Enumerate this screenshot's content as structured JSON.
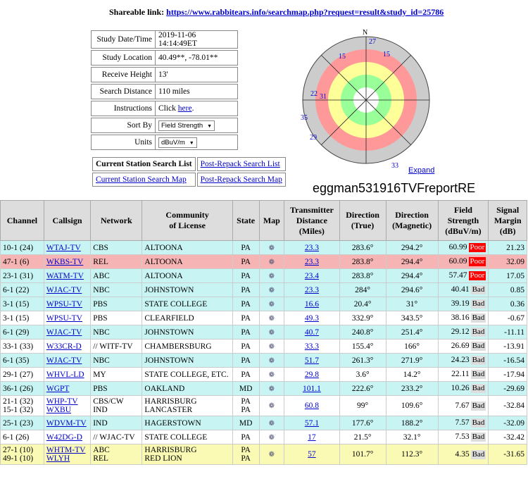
{
  "share": {
    "label": "Shareable link:",
    "url": "https://www.rabbitears.info/searchmap.php?request=result&study_id=25786"
  },
  "info": {
    "date_label": "Study Date/Time",
    "date": "2019-11-06 14:14:49ET",
    "loc_label": "Study Location",
    "loc": "40.49**, -78.01**",
    "height_label": "Receive Height",
    "height": "13'",
    "dist_label": "Search Distance",
    "dist": "110 miles",
    "instr_label": "Instructions",
    "instr_text": "Click ",
    "instr_link": "here",
    "sort_label": "Sort By",
    "sort_value": "Field Strength",
    "units_label": "Units",
    "units_value": "dBuV/m"
  },
  "lists": {
    "current_list": "Current Station Search List",
    "post_list": "Post-Repack Search List",
    "current_map": "Current Station Search Map",
    "post_map": "Post-Repack Search Map"
  },
  "polar": {
    "north": "N",
    "labels": [
      "27",
      "15",
      "15",
      "22",
      "31",
      "35",
      "29",
      "33"
    ],
    "expand": "Expand"
  },
  "handle": "eggman531916TVFreportRE",
  "table": {
    "headers": {
      "channel": "Channel",
      "callsign": "Callsign",
      "network": "Network",
      "community_a": "Community",
      "community_b": "of License",
      "state": "State",
      "map": "Map",
      "tx_a": "Transmitter",
      "tx_b": "Distance",
      "tx_c": "(Miles)",
      "dir_a": "Direction",
      "dir_b": "(True)",
      "mag_a": "Direction",
      "mag_b": "(Magnetic)",
      "fs_a": "Field",
      "fs_b": "Strength",
      "fs_c": "(dBuV/m)",
      "sm_a": "Signal",
      "sm_b": "Margin",
      "sm_c": "(dB)"
    },
    "rows": [
      {
        "ch": "10-1 (24)",
        "call": "WTAJ-TV",
        "net": "CBS",
        "comm": "ALTOONA",
        "st": "PA",
        "dist": "23.3",
        "dir": "283.6°",
        "mag": "294.2°",
        "fs": "60.99",
        "q": "Poor",
        "sm": "21.23",
        "bg": "#c8f4f4"
      },
      {
        "ch": "47-1 (6)",
        "call": "WKBS-TV",
        "net": "REL",
        "comm": "ALTOONA",
        "st": "PA",
        "dist": "23.3",
        "dir": "283.8°",
        "mag": "294.4°",
        "fs": "60.09",
        "q": "Poor",
        "sm": "32.09",
        "bg": "#f6b4b4"
      },
      {
        "ch": "23-1 (31)",
        "call": "WATM-TV",
        "net": "ABC",
        "comm": "ALTOONA",
        "st": "PA",
        "dist": "23.4",
        "dir": "283.8°",
        "mag": "294.4°",
        "fs": "57.47",
        "q": "Poor",
        "sm": "17.05",
        "bg": "#c8f4f4"
      },
      {
        "ch": "6-1 (22)",
        "call": "WJAC-TV",
        "net": "NBC",
        "comm": "JOHNSTOWN",
        "st": "PA",
        "dist": "23.3",
        "dir": "284°",
        "mag": "294.6°",
        "fs": "40.41",
        "q": "Bad",
        "sm": "0.85",
        "bg": "#c8f4f4"
      },
      {
        "ch": "3-1 (15)",
        "call": "WPSU-TV",
        "net": "PBS",
        "comm": "STATE COLLEGE",
        "st": "PA",
        "dist": "16.6",
        "dir": "20.4°",
        "mag": "31°",
        "fs": "39.19",
        "q": "Bad",
        "sm": "0.36",
        "bg": "#c8f4f4"
      },
      {
        "ch": "3-1 (15)",
        "call": "WPSU-TV",
        "net": "PBS",
        "comm": "CLEARFIELD",
        "st": "PA",
        "dist": "49.3",
        "dir": "332.9°",
        "mag": "343.5°",
        "fs": "38.16",
        "q": "Bad",
        "sm": "-0.67",
        "bg": "#ffffff"
      },
      {
        "ch": "6-1 (29)",
        "call": "WJAC-TV",
        "net": "NBC",
        "comm": "JOHNSTOWN",
        "st": "PA",
        "dist": "40.7",
        "dir": "240.8°",
        "mag": "251.4°",
        "fs": "29.12",
        "q": "Bad",
        "sm": "-11.11",
        "bg": "#c8f4f4"
      },
      {
        "ch": "33-1 (33)",
        "call": "W33CR-D",
        "net": "// WITF-TV",
        "comm": "CHAMBERSBURG",
        "st": "PA",
        "dist": "33.3",
        "dir": "155.4°",
        "mag": "166°",
        "fs": "26.69",
        "q": "Bad",
        "sm": "-13.91",
        "bg": "#ffffff"
      },
      {
        "ch": "6-1 (35)",
        "call": "WJAC-TV",
        "net": "NBC",
        "comm": "JOHNSTOWN",
        "st": "PA",
        "dist": "51.7",
        "dir": "261.3°",
        "mag": "271.9°",
        "fs": "24.23",
        "q": "Bad",
        "sm": "-16.54",
        "bg": "#c8f4f4"
      },
      {
        "ch": "29-1 (27)",
        "call": "WHVL-LD",
        "net": "MY",
        "comm": "STATE COLLEGE, ETC.",
        "st": "PA",
        "dist": "29.8",
        "dir": "3.6°",
        "mag": "14.2°",
        "fs": "22.11",
        "q": "Bad",
        "sm": "-17.94",
        "bg": "#ffffff"
      },
      {
        "ch": "36-1 (26)",
        "call": "WGPT",
        "net": "PBS",
        "comm": "OAKLAND",
        "st": "MD",
        "dist": "101.1",
        "dir": "222.6°",
        "mag": "233.2°",
        "fs": "10.26",
        "q": "Bad",
        "sm": "-29.69",
        "bg": "#c8f4f4"
      },
      {
        "ch": "21-1 (32)",
        "ch2": "15-1 (32)",
        "call": "WHP-TV",
        "call2": "WXBU",
        "net": "CBS/CW",
        "net2": "IND",
        "comm": "HARRISBURG",
        "comm2": "LANCASTER",
        "st": "PA",
        "st2": "PA",
        "dist": "60.8",
        "dir": "99°",
        "mag": "109.6°",
        "fs": "7.67",
        "q": "Bad",
        "sm": "-32.84",
        "bg": "#ffffff"
      },
      {
        "ch": "25-1 (23)",
        "call": "WDVM-TV",
        "net": "IND",
        "comm": "HAGERSTOWN",
        "st": "MD",
        "dist": "57.1",
        "dir": "177.6°",
        "mag": "188.2°",
        "fs": "7.57",
        "q": "Bad",
        "sm": "-32.09",
        "bg": "#c8f4f4"
      },
      {
        "ch": "6-1 (26)",
        "call": "W42DG-D",
        "net": "// WJAC-TV",
        "comm": "STATE COLLEGE",
        "st": "PA",
        "dist": "17",
        "dir": "21.5°",
        "mag": "32.1°",
        "fs": "7.53",
        "q": "Bad",
        "sm": "-32.42",
        "bg": "#ffffff"
      },
      {
        "ch": "27-1 (10)",
        "ch2": "49-1 (10)",
        "call": "WHTM-TV",
        "call2": "WLYH",
        "net": "ABC",
        "net2": "REL",
        "comm": "HARRISBURG",
        "comm2": "RED LION",
        "st": "PA",
        "st2": "PA",
        "dist": "57",
        "dir": "101.7°",
        "mag": "112.3°",
        "fs": "4.35",
        "q": "Bad",
        "sm": "-31.65",
        "bg": "#fafab4"
      }
    ]
  }
}
